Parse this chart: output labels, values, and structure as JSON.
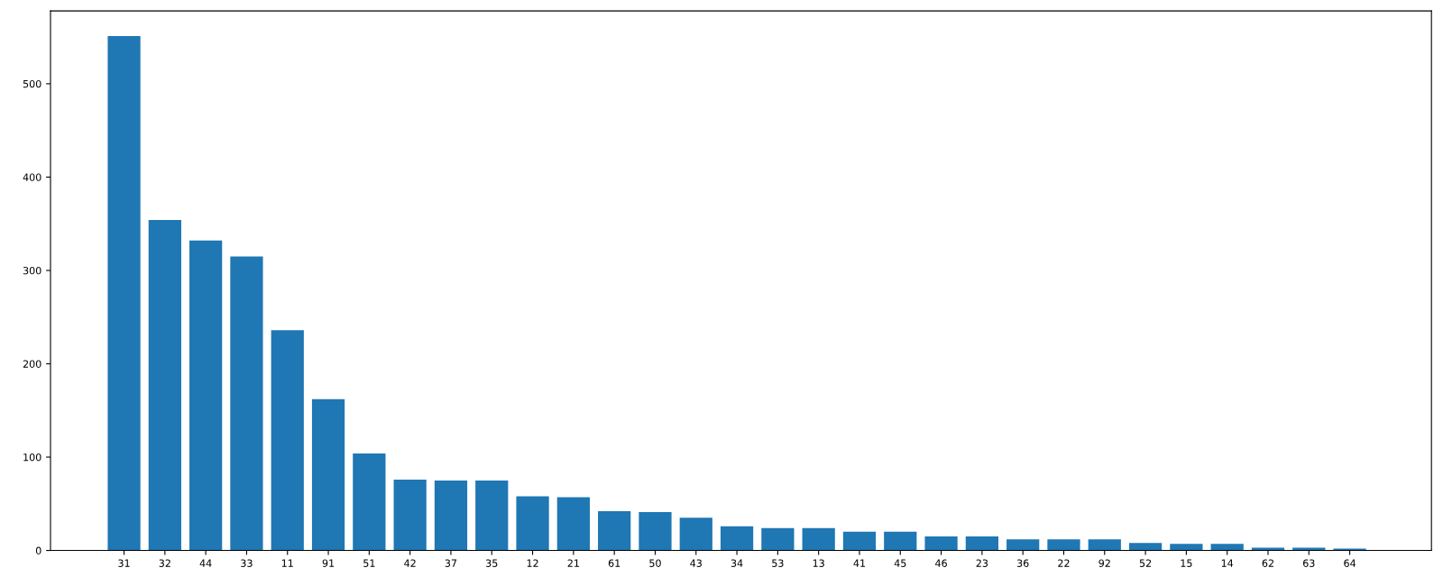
{
  "chart_data": {
    "type": "bar",
    "categories": [
      "31",
      "32",
      "44",
      "33",
      "11",
      "91",
      "51",
      "42",
      "37",
      "35",
      "12",
      "21",
      "61",
      "50",
      "43",
      "34",
      "53",
      "13",
      "41",
      "45",
      "46",
      "23",
      "36",
      "22",
      "92",
      "52",
      "15",
      "14",
      "62",
      "63",
      "64"
    ],
    "values": [
      551,
      354,
      332,
      315,
      236,
      162,
      104,
      76,
      75,
      75,
      58,
      57,
      42,
      41,
      35,
      26,
      24,
      24,
      20,
      20,
      15,
      15,
      12,
      12,
      12,
      8,
      7,
      7,
      3,
      3,
      2
    ],
    "color": "#1f77b4",
    "ylim": [
      0,
      578
    ],
    "yticks": [
      0,
      100,
      200,
      300,
      400,
      500
    ],
    "grid": false
  }
}
